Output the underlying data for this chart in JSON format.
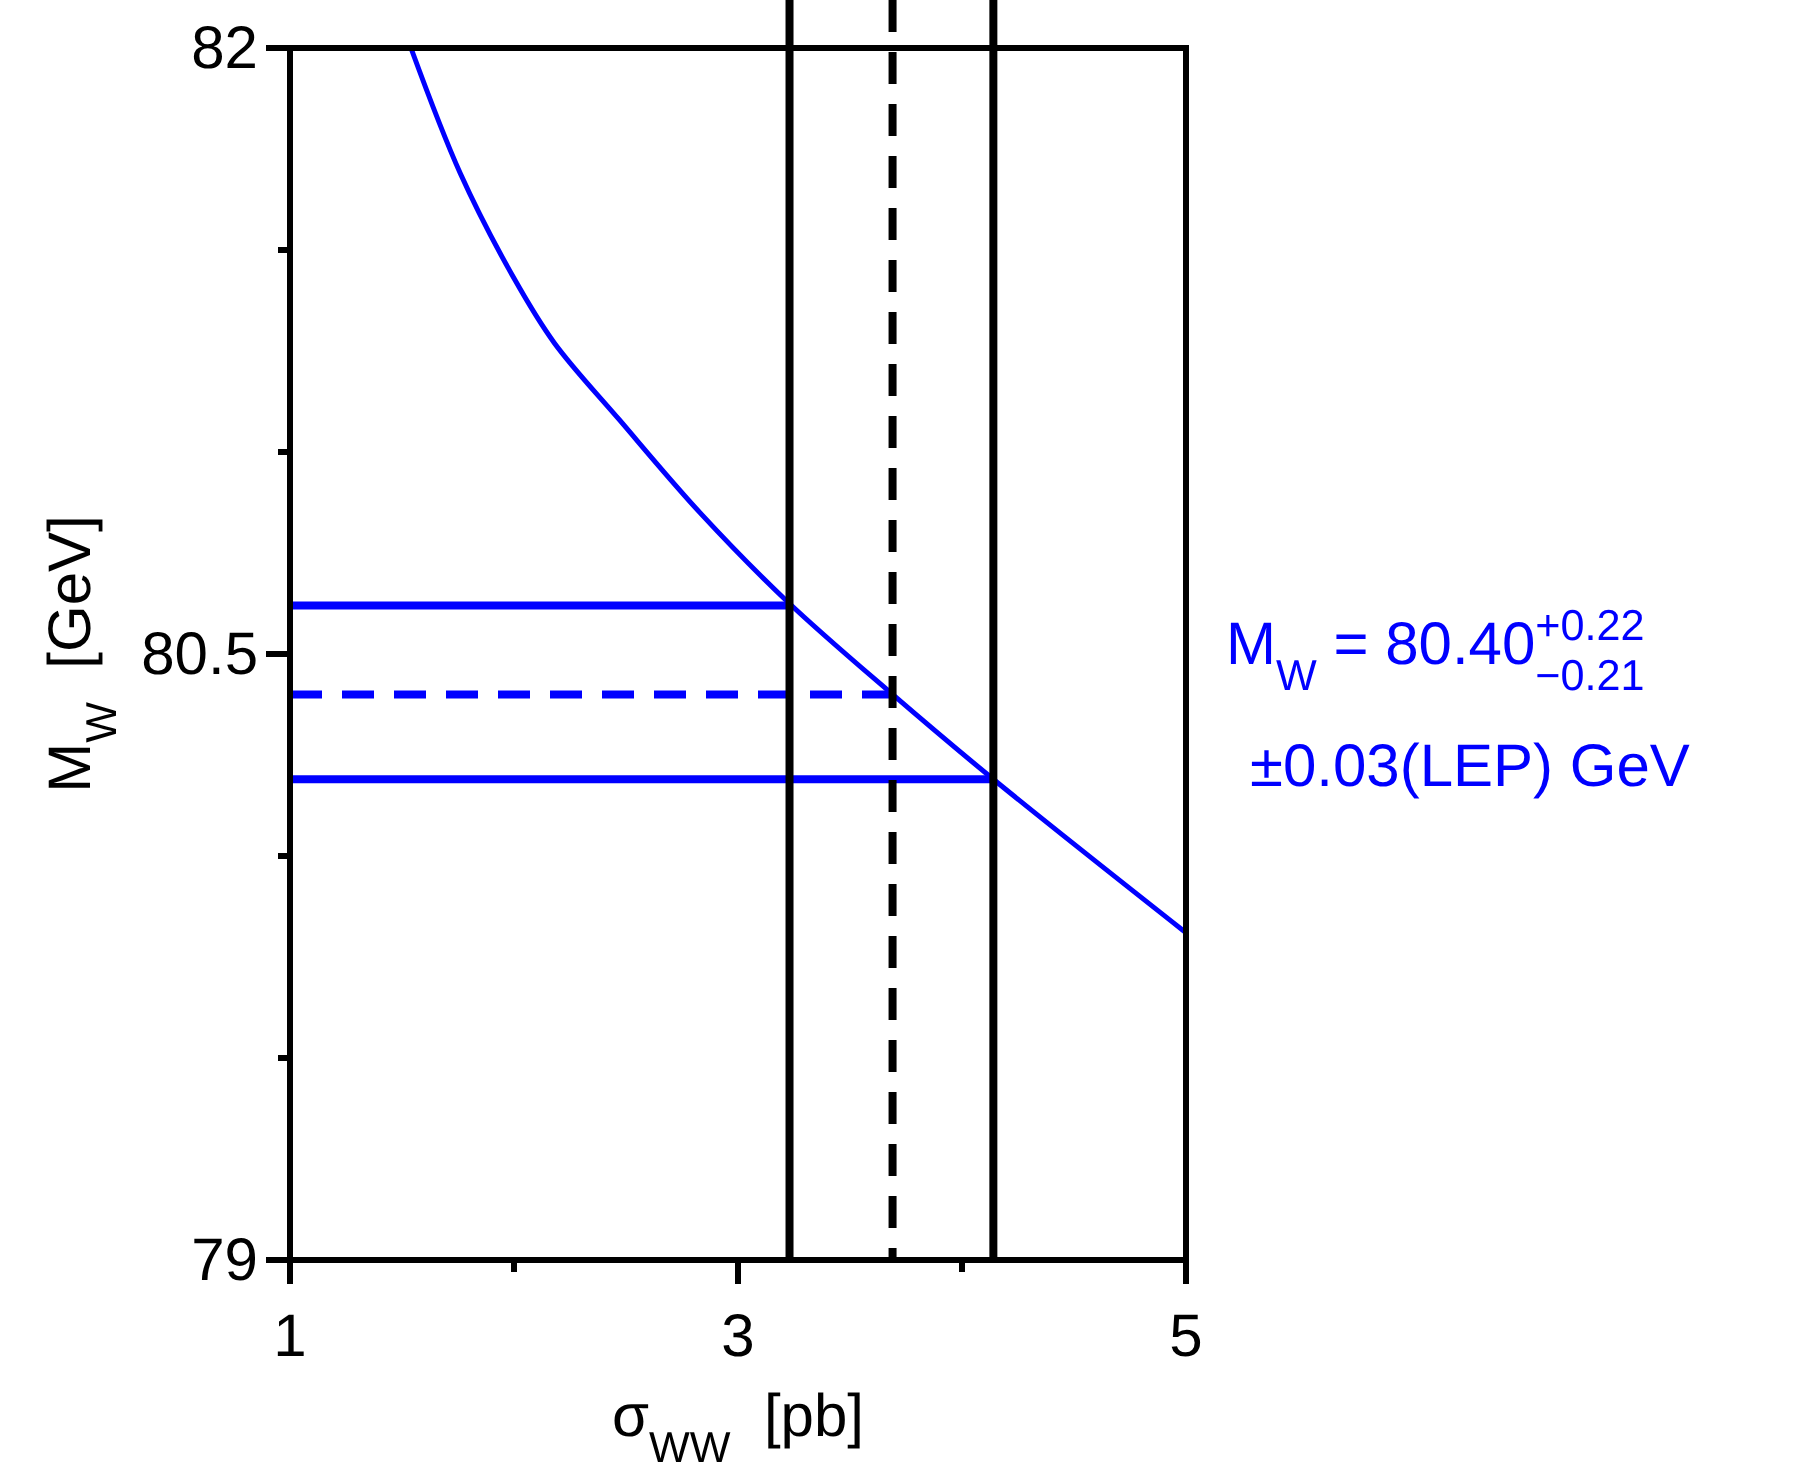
{
  "chart_data": {
    "type": "line",
    "xlabel": "σ$_{WW}$  [pb]",
    "ylabel": "M$_{W}$  [GeV]",
    "xlim": [
      1,
      5
    ],
    "xticks": [
      1,
      {
        "value": 2,
        "label": null
      },
      3,
      {
        "value": 4,
        "label": null
      },
      5
    ],
    "ylim": [
      79,
      82
    ],
    "yticks": [
      79,
      {
        "value": 79.5,
        "label": null
      },
      {
        "value": 80,
        "label": null
      },
      80.5,
      {
        "value": 81,
        "label": null
      },
      {
        "value": 81.5,
        "label": null
      },
      82
    ],
    "grid": false,
    "marker": "none",
    "series": [
      {
        "color": "#0000ff",
        "x": [
          1.54,
          1.76,
          2,
          2.18,
          2.47,
          2.83,
          3.22,
          3.69,
          4.14,
          5
        ],
        "values": [
          82,
          81.69,
          81.43,
          81.27,
          81.08,
          80.85,
          80.63,
          80.4,
          80.19,
          79.81
        ]
      },
      {
        "color": "#0000ff",
        "x": [
          1,
          3.23
        ],
        "values": [
          80.62,
          80.62
        ]
      },
      {
        "color": "#0000ff",
        "line_style": "dashed",
        "x": [
          1,
          3.69
        ],
        "values": [
          80.4,
          80.4
        ]
      },
      {
        "color": "#0000ff",
        "x": [
          1,
          4.14
        ],
        "values": [
          80.19,
          80.19
        ]
      }
    ],
    "ref_lines": [
      {
        "axis": "x",
        "value": 3.23,
        "color": "#000000"
      },
      {
        "axis": "x",
        "value": 3.69,
        "color": "#000000",
        "line_style": "dashed"
      },
      {
        "axis": "x",
        "value": 4.14,
        "color": "#000000"
      }
    ],
    "annotations": [
      "M$_{W}$ = 80.40$^{+0.22}$$_{−0.21}$",
      "±0.03(LEP) GeV"
    ]
  }
}
